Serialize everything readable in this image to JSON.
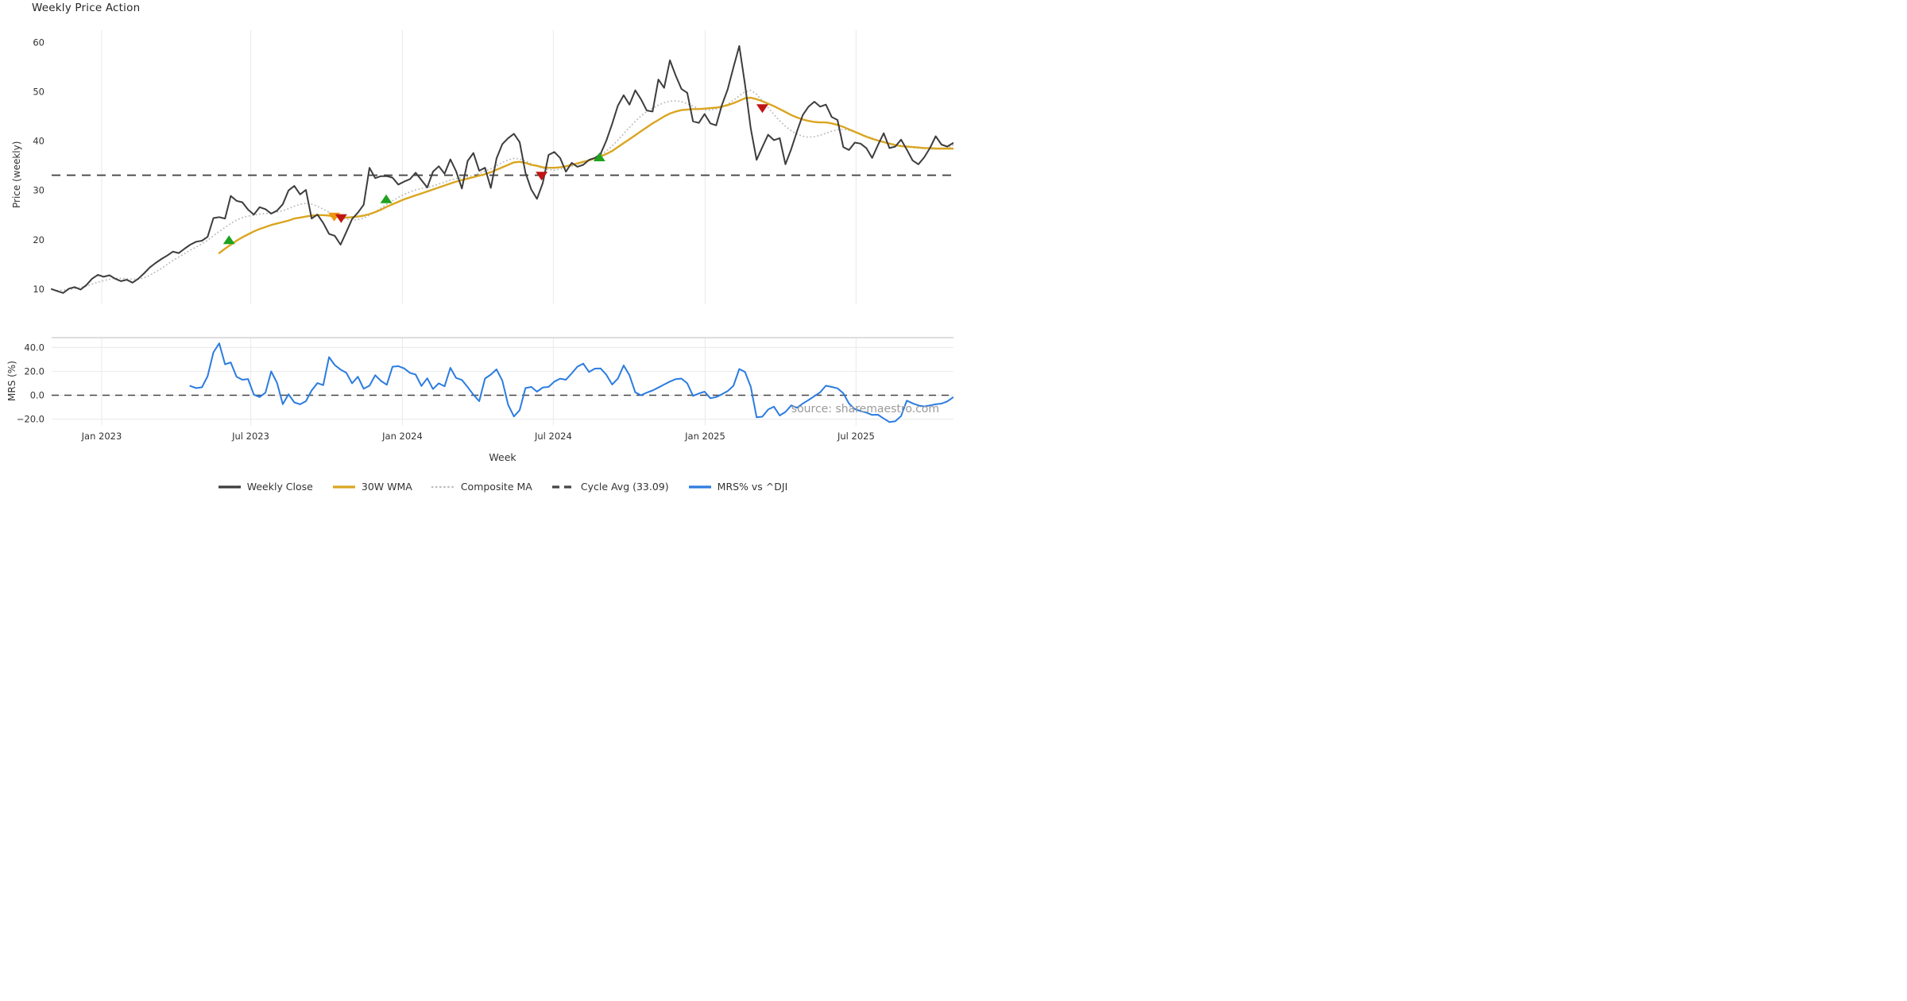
{
  "title": "Weekly Price Action",
  "source_note": "source: sharemaestro.com",
  "colors": {
    "close": "#3D3D3D",
    "wma": "#DAA520",
    "composite": "#BBBBBB",
    "cycle_dash": "#454545",
    "mrs": "#2B7CE0",
    "buy": "#1FA21F",
    "sell": "#C01515",
    "warning": "#F0950F",
    "gridline": "#ECECEC",
    "panel_spine": "#C9C9C9"
  },
  "price_panel": {
    "ylabel": "Price (weekly)",
    "yticks": [
      10,
      20,
      30,
      40,
      50,
      60
    ],
    "ylim": [
      7.0,
      62.5
    ],
    "cycle_avg_value": 33.09
  },
  "mrs_panel": {
    "ylabel": "MRS (%)",
    "yticks": [
      40,
      20,
      0,
      -20
    ],
    "ytick_labels": [
      "40.0",
      "20.0",
      "0.0",
      "−20.0"
    ],
    "ylim": [
      -25.3,
      48.3
    ],
    "zero_line": 0
  },
  "x_axis": {
    "label": "Week",
    "xlim_weeks": [
      0,
      156.08
    ],
    "ticks": [
      {
        "week": 8.66,
        "label": "Jan 2023"
      },
      {
        "week": 34.45,
        "label": "Jul 2023"
      },
      {
        "week": 60.71,
        "label": "Jan 2024"
      },
      {
        "week": 86.83,
        "label": "Jul 2024"
      },
      {
        "week": 113.1,
        "label": "Jan 2025"
      },
      {
        "week": 139.22,
        "label": "Jul 2025"
      }
    ]
  },
  "legend": [
    {
      "label": "Weekly Close",
      "color": "#3D3D3D",
      "style": "solid"
    },
    {
      "label": "30W WMA",
      "color": "#DAA520",
      "style": "solid"
    },
    {
      "label": "Composite MA",
      "color": "#BBBBBB",
      "style": "dotted"
    },
    {
      "label": "Cycle Avg (33.09)",
      "color": "#454545",
      "style": "dashed"
    },
    {
      "label": "MRS% vs ^DJI",
      "color": "#2B7CE0",
      "style": "solid"
    }
  ],
  "chart_data": [
    {
      "type": "line",
      "panel": "price",
      "title": "Weekly Price Action",
      "xlabel": "Week",
      "ylabel": "Price (weekly)",
      "ylim": [
        7.0,
        62.5
      ],
      "x_unit": "week_index_from_2022-11",
      "cycle_avg": 33.09,
      "series": [
        {
          "name": "Weekly Close",
          "start_week": 0,
          "values": [
            10.0,
            9.6,
            9.2,
            10.1,
            10.4,
            9.9,
            10.8,
            12.1,
            12.9,
            12.5,
            12.8,
            12.1,
            11.6,
            11.9,
            11.3,
            12.1,
            13.2,
            14.4,
            15.3,
            16.1,
            16.8,
            17.6,
            17.3,
            18.2,
            19.0,
            19.6,
            19.8,
            20.6,
            24.4,
            24.6,
            24.3,
            28.9,
            27.9,
            27.6,
            26.1,
            25.1,
            26.6,
            26.2,
            25.3,
            25.9,
            27.2,
            30.0,
            30.9,
            29.2,
            30.1,
            24.3,
            25.1,
            23.4,
            21.2,
            20.8,
            19.0,
            21.6,
            24.2,
            25.5,
            27.1,
            34.6,
            32.5,
            32.9,
            32.9,
            32.6,
            31.2,
            31.8,
            32.3,
            33.6,
            32.1,
            30.6,
            33.8,
            34.9,
            33.4,
            36.3,
            33.9,
            30.4,
            36.0,
            37.6,
            34.0,
            34.6,
            30.5,
            36.5,
            39.4,
            40.6,
            41.5,
            39.8,
            33.6,
            30.2,
            28.3,
            31.5,
            37.2,
            37.8,
            36.6,
            33.8,
            35.6,
            34.8,
            35.2,
            36.2,
            36.6,
            37.4,
            40.1,
            43.5,
            47.2,
            49.3,
            47.4,
            50.3,
            48.5,
            46.2,
            46.0,
            52.5,
            50.8,
            56.4,
            53.3,
            50.6,
            49.8,
            44.0,
            43.7,
            45.5,
            43.6,
            43.2,
            47.3,
            50.5,
            55.0,
            59.3,
            51.5,
            42.5,
            36.2,
            38.8,
            41.3,
            40.2,
            40.6,
            35.3,
            38.4,
            42.0,
            45.3,
            47.0,
            48.0,
            47.0,
            47.4,
            44.9,
            44.3,
            38.8,
            38.2,
            39.7,
            39.5,
            38.6,
            36.6,
            39.2,
            41.6,
            38.6,
            38.9,
            40.3,
            38.3,
            36.1,
            35.3,
            36.7,
            38.6,
            41.0,
            39.3,
            38.9,
            39.6
          ]
        },
        {
          "name": "30W WMA",
          "start_week": 29,
          "values": [
            17.3,
            18.2,
            19.0,
            19.8,
            20.5,
            21.1,
            21.7,
            22.2,
            22.6,
            23.0,
            23.3,
            23.6,
            23.9,
            24.3,
            24.5,
            24.7,
            24.9,
            25.0,
            25.0,
            24.9,
            24.7,
            24.6,
            24.5,
            24.6,
            24.7,
            24.9,
            25.2,
            25.6,
            26.1,
            26.7,
            27.2,
            27.7,
            28.2,
            28.6,
            29.0,
            29.4,
            29.8,
            30.2,
            30.6,
            31.0,
            31.4,
            31.8,
            32.1,
            32.4,
            32.7,
            33.0,
            33.3,
            33.7,
            34.2,
            34.7,
            35.2,
            35.7,
            35.8,
            35.6,
            35.2,
            35.0,
            34.7,
            34.6,
            34.6,
            34.7,
            34.9,
            35.2,
            35.5,
            35.8,
            36.1,
            36.5,
            36.9,
            37.4,
            38.0,
            38.8,
            39.6,
            40.4,
            41.2,
            42.0,
            42.8,
            43.6,
            44.3,
            45.0,
            45.6,
            46.0,
            46.3,
            46.4,
            46.5,
            46.5,
            46.6,
            46.7,
            46.8,
            47.0,
            47.3,
            47.7,
            48.2,
            48.7,
            48.8,
            48.5,
            48.1,
            47.6,
            47.1,
            46.5,
            45.9,
            45.3,
            44.8,
            44.4,
            44.1,
            43.9,
            43.8,
            43.8,
            43.6,
            43.3,
            42.9,
            42.4,
            41.9,
            41.4,
            40.9,
            40.5,
            40.1,
            39.8,
            39.5,
            39.2,
            39.0,
            38.9,
            38.8,
            38.7,
            38.6,
            38.6,
            38.5,
            38.5,
            38.5,
            38.5
          ]
        },
        {
          "name": "Composite MA",
          "start_week": 1,
          "values": [
            9.7,
            9.8,
            9.9,
            10.1,
            10.3,
            10.6,
            11.0,
            11.4,
            11.7,
            12.0,
            12.2,
            12.2,
            12.1,
            12.0,
            12.0,
            12.3,
            12.8,
            13.5,
            14.2,
            15.0,
            15.8,
            16.5,
            17.2,
            17.9,
            18.5,
            19.2,
            19.9,
            20.8,
            21.7,
            22.5,
            23.3,
            24.0,
            24.5,
            24.8,
            25.0,
            25.2,
            25.3,
            25.4,
            25.6,
            25.9,
            26.3,
            26.8,
            27.2,
            27.4,
            27.2,
            26.8,
            26.2,
            25.6,
            25.0,
            24.5,
            24.2,
            24.0,
            24.1,
            24.4,
            25.0,
            25.7,
            26.4,
            27.2,
            27.9,
            28.6,
            29.2,
            29.7,
            30.1,
            30.4,
            30.6,
            30.9,
            31.3,
            31.7,
            32.1,
            32.4,
            32.6,
            32.8,
            33.1,
            33.5,
            33.9,
            34.4,
            35.0,
            35.7,
            36.2,
            36.5,
            36.4,
            36.0,
            35.4,
            34.9,
            34.5,
            34.2,
            34.1,
            34.3,
            34.6,
            34.9,
            35.3,
            35.7,
            36.1,
            36.6,
            37.2,
            38.0,
            39.0,
            40.2,
            41.5,
            42.8,
            44.0,
            45.1,
            46.0,
            46.7,
            47.3,
            47.8,
            48.1,
            48.2,
            48.0,
            47.6,
            47.1,
            46.6,
            46.3,
            46.3,
            46.5,
            46.9,
            47.5,
            48.3,
            49.2,
            50.0,
            50.3,
            49.5,
            48.2,
            46.8,
            45.4,
            44.1,
            43.0,
            42.1,
            41.4,
            41.0,
            40.8,
            40.9,
            41.2,
            41.6,
            42.0,
            42.3,
            42.4,
            42.2,
            41.8,
            41.4,
            41.0,
            40.6,
            40.2,
            39.9,
            39.6,
            39.3,
            39.1,
            38.9,
            38.7,
            38.6,
            38.5,
            38.4,
            38.4,
            38.4,
            38.6,
            39.2
          ]
        }
      ],
      "markers": {
        "buy": [
          {
            "week": 30.7,
            "price": 20.0
          },
          {
            "week": 57.9,
            "price": 28.3
          },
          {
            "week": 94.8,
            "price": 36.8
          }
        ],
        "warning": [
          {
            "week": 48.9,
            "price": 24.6
          }
        ],
        "sell": [
          {
            "week": 50.1,
            "price": 24.3
          },
          {
            "week": 84.8,
            "price": 32.9
          },
          {
            "week": 123.0,
            "price": 46.6
          }
        ]
      }
    },
    {
      "type": "line",
      "panel": "mrs",
      "ylabel": "MRS (%)",
      "ylim": [
        -25.3,
        48.3
      ],
      "zero_line": 0,
      "series": [
        {
          "name": "MRS% vs ^DJI",
          "start_week": 24,
          "values": [
            7.8,
            6.0,
            6.7,
            16.0,
            36.0,
            43.5,
            26.0,
            27.5,
            15.5,
            13.0,
            13.6,
            0.5,
            -1.5,
            2.2,
            20.0,
            10.5,
            -7.5,
            0.8,
            -6.0,
            -7.6,
            -5.0,
            4.0,
            10.2,
            8.5,
            32.0,
            25.3,
            21.5,
            18.8,
            10.0,
            15.5,
            5.5,
            8.0,
            16.8,
            12.0,
            8.8,
            23.9,
            24.4,
            22.5,
            18.8,
            17.3,
            7.8,
            14.2,
            5.2,
            10.0,
            7.5,
            23.0,
            14.5,
            12.8,
            6.8,
            0.5,
            -5.0,
            14.0,
            17.3,
            21.7,
            12.2,
            -8.0,
            -17.8,
            -12.5,
            6.0,
            7.0,
            3.0,
            6.5,
            7.0,
            11.5,
            13.9,
            13.0,
            18.3,
            24.0,
            26.5,
            19.5,
            22.3,
            22.5,
            17.2,
            9.0,
            13.9,
            25.0,
            16.8,
            2.5,
            0.0,
            2.2,
            4.0,
            6.5,
            9.0,
            11.5,
            13.5,
            14.0,
            10.0,
            -0.5,
            1.5,
            3.0,
            -2.5,
            -1.5,
            0.8,
            3.5,
            8.0,
            22.0,
            19.5,
            7.0,
            -18.5,
            -18.0,
            -12.0,
            -9.6,
            -17.0,
            -14.0,
            -8.5,
            -10.5,
            -7.0,
            -4.0,
            -0.8,
            2.5,
            8.0,
            7.0,
            5.8,
            1.7,
            -7.0,
            -11.5,
            -13.3,
            -14.5,
            -16.5,
            -16.3,
            -19.5,
            -22.5,
            -21.8,
            -17.5,
            -4.5,
            -6.8,
            -8.5,
            -9.4,
            -8.5,
            -7.6,
            -7.0,
            -5.2,
            -1.8
          ]
        }
      ]
    }
  ]
}
